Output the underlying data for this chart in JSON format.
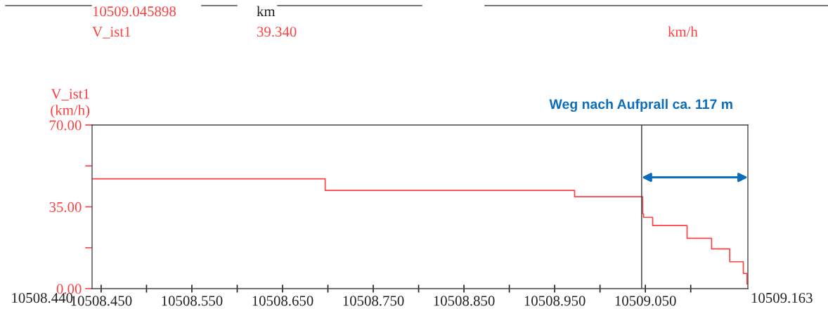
{
  "chart_data": {
    "type": "step",
    "ylabel": "V_ist1\n(km/h)",
    "annotations": [
      "10509.045898",
      "km",
      "V_ist1",
      "39.340",
      "km/h",
      "Weg nach Aufprall ca. 117 m",
      "10508.440",
      "10509.163"
    ],
    "x": [
      10508.44,
      10508.697,
      10508.972,
      10509.047,
      10509.048,
      10509.058,
      10509.096,
      10509.123,
      10509.143,
      10509.158,
      10509.162,
      10509.163
    ],
    "series": [
      {
        "color": "#ff4040",
        "values": [
          47,
          42,
          39.3,
          32,
          30.5,
          27,
          21.5,
          17,
          11.5,
          6.5,
          2,
          2
        ]
      }
    ],
    "xlim": [
      10508.44,
      10509.163
    ],
    "xticks": [
      {
        "value": 10508.45,
        "label": "10508.450"
      },
      {
        "value": 10508.5,
        "label": null
      },
      {
        "value": 10508.55,
        "label": "10508.550"
      },
      {
        "value": 10508.6,
        "label": null
      },
      {
        "value": 10508.65,
        "label": "10508.650"
      },
      {
        "value": 10508.7,
        "label": null
      },
      {
        "value": 10508.75,
        "label": "10508.750"
      },
      {
        "value": 10508.8,
        "label": null
      },
      {
        "value": 10508.85,
        "label": "10508.850"
      },
      {
        "value": 10508.9,
        "label": null
      },
      {
        "value": 10508.95,
        "label": "10508.950"
      },
      {
        "value": 10509.0,
        "label": null
      },
      {
        "value": 10509.05,
        "label": "10509.050"
      },
      {
        "value": 10509.1,
        "label": null
      }
    ],
    "ylim": [
      0,
      70
    ],
    "yticks": [
      {
        "value": 0,
        "label": "0.00"
      },
      {
        "value": 17.5,
        "label": null
      },
      {
        "value": 35,
        "label": "35.00"
      },
      {
        "value": 52.5,
        "label": null
      },
      {
        "value": 70,
        "label": "70.00"
      }
    ],
    "ref_lines": [
      {
        "axis": "x",
        "value": 10509.045898,
        "label": null,
        "color": "#333333"
      }
    ],
    "grid": false,
    "marker": "none",
    "line_style": "solid"
  }
}
